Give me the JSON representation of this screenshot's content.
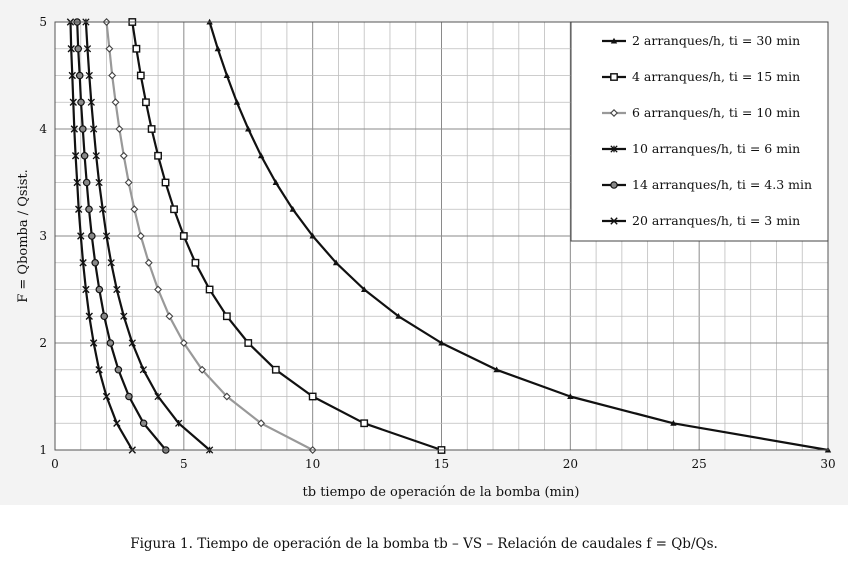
{
  "caption": "Figura 1. Tiempo de operación de la bomba tb – VS – Relación de caudales f = Qb/Qs.",
  "chart_data": {
    "type": "line",
    "title": "",
    "xlabel": "tb tiempo de operación de la bomba (min)",
    "ylabel": "F = Qbomba / Qsist.",
    "xlim": [
      0,
      30
    ],
    "ylim": [
      1,
      5
    ],
    "xticks": [
      "0",
      "5",
      "10",
      "15",
      "20",
      "25",
      "30"
    ],
    "yticks": [
      "1",
      "2",
      "3",
      "4",
      "5"
    ],
    "grid": true,
    "legend_position": "top-right",
    "series": [
      {
        "name": "2 arranques/h, ti = 30 min",
        "color": "#111111",
        "marker": "triangle",
        "x": [
          6.0,
          6.32,
          6.67,
          7.06,
          7.5,
          8.0,
          8.57,
          9.23,
          10.0,
          10.91,
          12.0,
          13.33,
          15.0,
          17.14,
          20.0,
          24.0,
          30.0
        ],
        "y": [
          5.0,
          4.75,
          4.5,
          4.25,
          4.0,
          3.75,
          3.5,
          3.25,
          3.0,
          2.75,
          2.5,
          2.25,
          2.0,
          1.75,
          1.5,
          1.25,
          1.0
        ]
      },
      {
        "name": "4 arranques/h, ti = 15 min",
        "color": "#111111",
        "marker": "square",
        "x": [
          3.0,
          3.16,
          3.33,
          3.53,
          3.75,
          4.0,
          4.29,
          4.62,
          5.0,
          5.45,
          6.0,
          6.67,
          7.5,
          8.57,
          10.0,
          12.0,
          15.0
        ],
        "y": [
          5.0,
          4.75,
          4.5,
          4.25,
          4.0,
          3.75,
          3.5,
          3.25,
          3.0,
          2.75,
          2.5,
          2.25,
          2.0,
          1.75,
          1.5,
          1.25,
          1.0
        ]
      },
      {
        "name": "6 arranques/h, ti = 10 min",
        "color": "#999999",
        "marker": "diamond",
        "x": [
          2.0,
          2.11,
          2.22,
          2.35,
          2.5,
          2.67,
          2.86,
          3.08,
          3.33,
          3.64,
          4.0,
          4.44,
          5.0,
          5.71,
          6.67,
          8.0,
          10.0
        ],
        "y": [
          5.0,
          4.75,
          4.5,
          4.25,
          4.0,
          3.75,
          3.5,
          3.25,
          3.0,
          2.75,
          2.5,
          2.25,
          2.0,
          1.75,
          1.5,
          1.25,
          1.0
        ]
      },
      {
        "name": "10 arranques/h, ti = 6 min",
        "color": "#111111",
        "marker": "star",
        "x": [
          1.2,
          1.26,
          1.33,
          1.41,
          1.5,
          1.6,
          1.71,
          1.85,
          2.0,
          2.18,
          2.4,
          2.67,
          3.0,
          3.43,
          4.0,
          4.8,
          6.0
        ],
        "y": [
          5.0,
          4.75,
          4.5,
          4.25,
          4.0,
          3.75,
          3.5,
          3.25,
          3.0,
          2.75,
          2.5,
          2.25,
          2.0,
          1.75,
          1.5,
          1.25,
          1.0
        ]
      },
      {
        "name": "14 arranques/h, ti = 4.3 min",
        "color": "#111111",
        "marker": "circle",
        "x": [
          0.86,
          0.9,
          0.96,
          1.01,
          1.08,
          1.15,
          1.23,
          1.32,
          1.43,
          1.56,
          1.72,
          1.91,
          2.15,
          2.46,
          2.87,
          3.44,
          4.3
        ],
        "y": [
          5.0,
          4.75,
          4.5,
          4.25,
          4.0,
          3.75,
          3.5,
          3.25,
          3.0,
          2.75,
          2.5,
          2.25,
          2.0,
          1.75,
          1.5,
          1.25,
          1.0
        ]
      },
      {
        "name": "20 arranques/h, ti = 3 min",
        "color": "#111111",
        "marker": "x",
        "x": [
          0.6,
          0.63,
          0.67,
          0.71,
          0.75,
          0.8,
          0.86,
          0.92,
          1.0,
          1.09,
          1.2,
          1.33,
          1.5,
          1.71,
          2.0,
          2.4,
          3.0
        ],
        "y": [
          5.0,
          4.75,
          4.5,
          4.25,
          4.0,
          3.75,
          3.5,
          3.25,
          3.0,
          2.75,
          2.5,
          2.25,
          2.0,
          1.75,
          1.5,
          1.25,
          1.0
        ]
      }
    ]
  }
}
